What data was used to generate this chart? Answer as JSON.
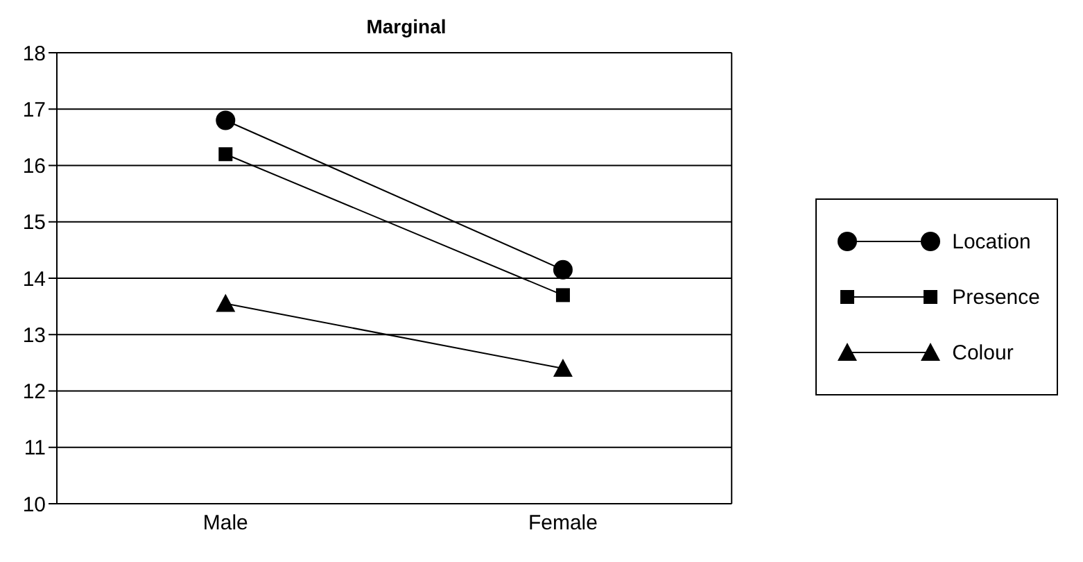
{
  "chart_data": {
    "type": "line",
    "title": "Marginal",
    "categories": [
      "Male",
      "Female"
    ],
    "series": [
      {
        "name": "Location",
        "color": "#000000",
        "marker": "circle",
        "values": [
          16.8,
          14.15
        ]
      },
      {
        "name": "Presence",
        "color": "#000000",
        "marker": "square",
        "values": [
          16.2,
          13.7
        ]
      },
      {
        "name": "Colour",
        "color": "#000000",
        "marker": "triangle",
        "values": [
          13.55,
          12.4
        ]
      }
    ],
    "ylim": [
      10,
      18
    ],
    "yticks": [
      10,
      11,
      12,
      13,
      14,
      15,
      16,
      17,
      18
    ],
    "grid": "y",
    "legend": "right"
  }
}
